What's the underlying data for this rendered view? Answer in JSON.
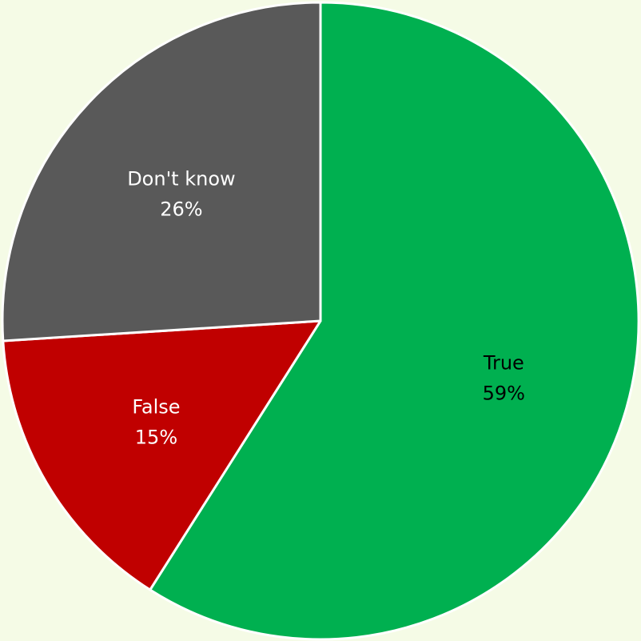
{
  "background_color": "#f5fbe6",
  "chart_data": {
    "type": "pie",
    "title": "",
    "start_angle_deg": 0,
    "direction": "clockwise",
    "slices": [
      {
        "label": "True",
        "percent_label": "59%",
        "value": 59,
        "color": "#00b050",
        "text_color": "#000000"
      },
      {
        "label": "False",
        "percent_label": "15%",
        "value": 15,
        "color": "#c00000",
        "text_color": "#ffffff"
      },
      {
        "label": "Don't know",
        "percent_label": "26%",
        "value": 26,
        "color": "#595959",
        "text_color": "#ffffff"
      }
    ]
  }
}
